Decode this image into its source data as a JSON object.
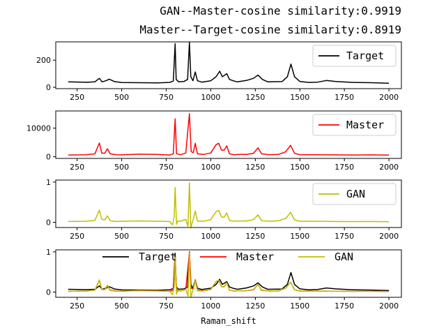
{
  "titles": [
    "GAN--Master-cosine similarity:0.9919",
    "Master--Target-cosine similarity:0.8919"
  ],
  "chart_data": [
    {
      "type": "line",
      "xlim": [
        130,
        2070
      ],
      "ylim": [
        -10,
        335
      ],
      "x_ticks": [
        250,
        500,
        750,
        1000,
        1250,
        1500,
        1750,
        2000
      ],
      "y_ticks": [
        0,
        200
      ],
      "legend": "top-right",
      "series": [
        {
          "name": "Target",
          "color": "#000000",
          "baseline": 18,
          "scale": 1,
          "points": [
            [
              200,
              22
            ],
            [
              300,
              19
            ],
            [
              350,
              22
            ],
            [
              375,
              48
            ],
            [
              390,
              22
            ],
            [
              415,
              32
            ],
            [
              430,
              42
            ],
            [
              460,
              24
            ],
            [
              500,
              17
            ],
            [
              600,
              16
            ],
            [
              700,
              14
            ],
            [
              770,
              18
            ],
            [
              790,
              28
            ],
            [
              800,
              304
            ],
            [
              806,
              40
            ],
            [
              820,
              22
            ],
            [
              850,
              25
            ],
            [
              870,
              40
            ],
            [
              880,
              315
            ],
            [
              888,
              60
            ],
            [
              900,
              30
            ],
            [
              913,
              95
            ],
            [
              925,
              30
            ],
            [
              950,
              20
            ],
            [
              1000,
              30
            ],
            [
              1030,
              60
            ],
            [
              1050,
              100
            ],
            [
              1065,
              60
            ],
            [
              1090,
              82
            ],
            [
              1105,
              40
            ],
            [
              1130,
              28
            ],
            [
              1150,
              22
            ],
            [
              1200,
              32
            ],
            [
              1240,
              48
            ],
            [
              1265,
              72
            ],
            [
              1290,
              40
            ],
            [
              1320,
              22
            ],
            [
              1400,
              24
            ],
            [
              1430,
              60
            ],
            [
              1450,
              153
            ],
            [
              1470,
              60
            ],
            [
              1500,
              25
            ],
            [
              1550,
              18
            ],
            [
              1600,
              20
            ],
            [
              1650,
              32
            ],
            [
              1700,
              25
            ],
            [
              1800,
              18
            ],
            [
              1900,
              16
            ],
            [
              2000,
              12
            ]
          ]
        }
      ]
    },
    {
      "type": "line",
      "xlim": [
        130,
        2070
      ],
      "ylim": [
        -600,
        16000
      ],
      "x_ticks": [
        250,
        500,
        750,
        1000,
        1250,
        1500,
        1750,
        2000
      ],
      "y_ticks": [
        0,
        10000
      ],
      "legend": "top-right",
      "series": [
        {
          "name": "Master",
          "color": "#ff0000",
          "baseline": 300,
          "scale": 50,
          "points": [
            [
              200,
              6
            ],
            [
              300,
              8
            ],
            [
              350,
              14
            ],
            [
              375,
              90
            ],
            [
              388,
              20
            ],
            [
              405,
              18
            ],
            [
              420,
              50
            ],
            [
              435,
              14
            ],
            [
              470,
              8
            ],
            [
              500,
              7
            ],
            [
              600,
              12
            ],
            [
              700,
              10
            ],
            [
              770,
              6
            ],
            [
              790,
              14
            ],
            [
              800,
              260
            ],
            [
              808,
              15
            ],
            [
              830,
              8
            ],
            [
              860,
              20
            ],
            [
              880,
              295
            ],
            [
              890,
              30
            ],
            [
              902,
              22
            ],
            [
              913,
              88
            ],
            [
              925,
              14
            ],
            [
              960,
              10
            ],
            [
              1000,
              20
            ],
            [
              1030,
              78
            ],
            [
              1045,
              88
            ],
            [
              1060,
              40
            ],
            [
              1075,
              40
            ],
            [
              1090,
              70
            ],
            [
              1105,
              14
            ],
            [
              1130,
              8
            ],
            [
              1160,
              10
            ],
            [
              1200,
              10
            ],
            [
              1240,
              18
            ],
            [
              1265,
              56
            ],
            [
              1285,
              14
            ],
            [
              1330,
              8
            ],
            [
              1380,
              10
            ],
            [
              1420,
              28
            ],
            [
              1448,
              74
            ],
            [
              1470,
              18
            ],
            [
              1500,
              8
            ],
            [
              1600,
              8
            ],
            [
              1700,
              7
            ],
            [
              1800,
              6
            ],
            [
              1900,
              7
            ],
            [
              2000,
              5
            ]
          ]
        }
      ]
    },
    {
      "type": "line",
      "xlim": [
        130,
        2070
      ],
      "ylim": [
        -0.13,
        1.05
      ],
      "x_ticks": [
        250,
        500,
        750,
        1000,
        1250,
        1500,
        1750,
        2000
      ],
      "y_ticks": [
        0,
        1
      ],
      "legend": "top-right",
      "series": [
        {
          "name": "GAN",
          "color": "#bfbf00",
          "baseline": 0,
          "scale": 0.00333,
          "points": [
            [
              200,
              6
            ],
            [
              300,
              8
            ],
            [
              350,
              15
            ],
            [
              375,
              90
            ],
            [
              388,
              22
            ],
            [
              405,
              18
            ],
            [
              420,
              48
            ],
            [
              435,
              12
            ],
            [
              470,
              6
            ],
            [
              500,
              8
            ],
            [
              600,
              10
            ],
            [
              700,
              8
            ],
            [
              770,
              6
            ],
            [
              785,
              -20
            ],
            [
              795,
              40
            ],
            [
              800,
              260
            ],
            [
              808,
              -15
            ],
            [
              815,
              10
            ],
            [
              830,
              8
            ],
            [
              860,
              22
            ],
            [
              872,
              -30
            ],
            [
              880,
              295
            ],
            [
              888,
              -40
            ],
            [
              902,
              24
            ],
            [
              913,
              85
            ],
            [
              925,
              10
            ],
            [
              960,
              8
            ],
            [
              1000,
              20
            ],
            [
              1030,
              80
            ],
            [
              1045,
              88
            ],
            [
              1060,
              40
            ],
            [
              1075,
              38
            ],
            [
              1090,
              70
            ],
            [
              1105,
              14
            ],
            [
              1130,
              8
            ],
            [
              1160,
              10
            ],
            [
              1200,
              10
            ],
            [
              1240,
              20
            ],
            [
              1265,
              56
            ],
            [
              1285,
              12
            ],
            [
              1330,
              8
            ],
            [
              1380,
              12
            ],
            [
              1420,
              28
            ],
            [
              1448,
              74
            ],
            [
              1470,
              18
            ],
            [
              1500,
              8
            ],
            [
              1600,
              8
            ],
            [
              1700,
              6
            ],
            [
              1800,
              5
            ],
            [
              1900,
              6
            ],
            [
              2000,
              4
            ]
          ]
        }
      ]
    },
    {
      "type": "line",
      "xlim": [
        130,
        2070
      ],
      "ylim": [
        -0.13,
        1.05
      ],
      "x_ticks": [
        250,
        500,
        750,
        1000,
        1250,
        1500,
        1750,
        2000
      ],
      "y_ticks": [
        0,
        1
      ],
      "xlabel": "Raman_shift",
      "legend": "upper-center",
      "series": [
        {
          "name": "Target",
          "color": "#000000",
          "baseline": 0,
          "scale": 0.00318,
          "ref": 0
        },
        {
          "name": "Master",
          "color": "#ff0000",
          "baseline": 0,
          "scale": 0.00333,
          "ref": 1
        },
        {
          "name": "GAN",
          "color": "#bfbf00",
          "baseline": 0,
          "scale": 0.00333,
          "ref": 2
        }
      ]
    }
  ]
}
